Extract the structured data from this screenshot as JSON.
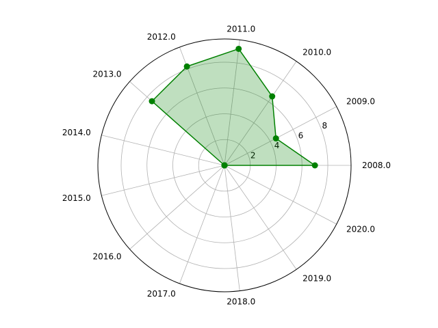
{
  "chart_data": {
    "type": "radar",
    "categories": [
      "2008.0",
      "2009.0",
      "2010.0",
      "2011.0",
      "2012.0",
      "2013.0",
      "2014.0",
      "2015.0",
      "2016.0",
      "2017.0",
      "2018.0",
      "2019.0",
      "2020.0"
    ],
    "values": [
      7.0,
      4.5,
      6.5,
      9.1,
      8.2,
      7.5,
      0,
      0,
      0,
      0,
      0,
      0,
      0
    ],
    "radial_ticks": [
      "2",
      "4",
      "6",
      "8"
    ],
    "rlim": [
      0,
      9.8
    ],
    "grid": true,
    "colors": {
      "line": "#008000",
      "fill": "#008000",
      "grid": "#b0b0b0",
      "frame": "#000000"
    }
  }
}
